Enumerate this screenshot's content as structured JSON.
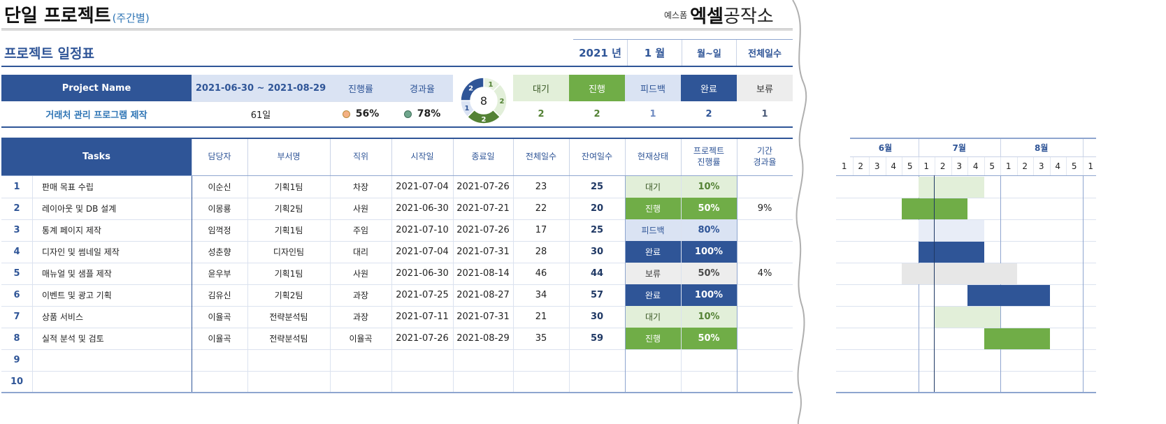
{
  "header": {
    "title": "단일 프로젝트",
    "subtitle": "(주간별)",
    "brand_prefix": "예스폼",
    "brand_bold": "엑셀",
    "brand_light": "공작소",
    "section_title": "프로젝트 일정표",
    "year_label": "2021 년",
    "month_label": "1 월",
    "weekday_label": "월~일",
    "total_days_label": "전체일수"
  },
  "summary": {
    "project_name_label": "Project Name",
    "project_name": "거래처 관리 프로그램 제작",
    "period": "2021-06-30 ~ 2021-08-29",
    "duration": "61일",
    "progress_label": "진행률",
    "progress_value": "56%",
    "elapsed_label": "경과율",
    "elapsed_value": "78%",
    "donut_total": "8",
    "donut_segments": [
      {
        "label": "1",
        "value": 1,
        "color": "#e8f2e0"
      },
      {
        "label": "2",
        "value": 2,
        "color": "#e2efd9"
      },
      {
        "label": "2",
        "value": 2,
        "color": "#548235"
      },
      {
        "label": "1",
        "value": 1,
        "color": "#dae3f3"
      },
      {
        "label": "2",
        "value": 2,
        "color": "#2f5597"
      }
    ],
    "statuses": [
      {
        "label": "대기",
        "count": "2",
        "bg": "#e2efd9",
        "fg": "#385723",
        "count_color": "#548235"
      },
      {
        "label": "진행",
        "count": "2",
        "bg": "#70ad47",
        "fg": "#ffffff",
        "count_color": "#548235"
      },
      {
        "label": "피드백",
        "count": "1",
        "bg": "#dae3f3",
        "fg": "#2f5597",
        "count_color": "#6f8bc2"
      },
      {
        "label": "완료",
        "count": "2",
        "bg": "#2f5597",
        "fg": "#ffffff",
        "count_color": "#2f5597"
      },
      {
        "label": "보류",
        "count": "1",
        "bg": "#ededed",
        "fg": "#333333",
        "count_color": "#4a5a78"
      }
    ]
  },
  "table": {
    "columns": [
      "Tasks",
      "담당자",
      "부서명",
      "직위",
      "시작일",
      "종료일",
      "전체일수",
      "잔여일수",
      "현재상태",
      "프로젝트 진행률",
      "기간 경과율"
    ],
    "column_lines": {
      "progress": [
        "프로젝트",
        "진행률"
      ],
      "elapsed": [
        "기간",
        "경과율"
      ]
    },
    "rows": [
      {
        "no": "1",
        "task": "판매 목표 수립",
        "owner": "이순신",
        "dept": "기획1팀",
        "pos": "차장",
        "start": "2021-07-04",
        "end": "2021-07-26",
        "total": "23",
        "remain": "25",
        "status": "대기",
        "progress": "10%",
        "elapsed": ""
      },
      {
        "no": "2",
        "task": "레이아웃 및 DB 설계",
        "owner": "이몽룡",
        "dept": "기획2팀",
        "pos": "사원",
        "start": "2021-06-30",
        "end": "2021-07-21",
        "total": "22",
        "remain": "20",
        "status": "진행",
        "progress": "50%",
        "elapsed": "9%"
      },
      {
        "no": "3",
        "task": "통계 페이지 제작",
        "owner": "임꺽정",
        "dept": "기획1팀",
        "pos": "주임",
        "start": "2021-07-10",
        "end": "2021-07-26",
        "total": "17",
        "remain": "25",
        "status": "피드백",
        "progress": "80%",
        "elapsed": ""
      },
      {
        "no": "4",
        "task": "디자인 및 썸네일 제작",
        "owner": "성춘향",
        "dept": "디자인팀",
        "pos": "대리",
        "start": "2021-07-04",
        "end": "2021-07-31",
        "total": "28",
        "remain": "30",
        "status": "완료",
        "progress": "100%",
        "elapsed": ""
      },
      {
        "no": "5",
        "task": "매뉴얼 및 샘플 제작",
        "owner": "윤우부",
        "dept": "기획1팀",
        "pos": "사원",
        "start": "2021-06-30",
        "end": "2021-08-14",
        "total": "46",
        "remain": "44",
        "status": "보류",
        "progress": "50%",
        "elapsed": "4%"
      },
      {
        "no": "6",
        "task": "이벤트 및 광고 기획",
        "owner": "김유신",
        "dept": "기획2팀",
        "pos": "과장",
        "start": "2021-07-25",
        "end": "2021-08-27",
        "total": "34",
        "remain": "57",
        "status": "완료",
        "progress": "100%",
        "elapsed": ""
      },
      {
        "no": "7",
        "task": "상품 서비스",
        "owner": "이율곡",
        "dept": "전략분석팀",
        "pos": "과장",
        "start": "2021-07-11",
        "end": "2021-07-31",
        "total": "21",
        "remain": "30",
        "status": "대기",
        "progress": "10%",
        "elapsed": ""
      },
      {
        "no": "8",
        "task": "실적 분석 및 검토",
        "owner": "이율곡",
        "dept": "전략분석팀",
        "pos": "이율곡",
        "start": "2021-07-26",
        "end": "2021-08-29",
        "total": "35",
        "remain": "59",
        "status": "진행",
        "progress": "50%",
        "elapsed": ""
      },
      {
        "no": "9",
        "task": "",
        "owner": "",
        "dept": "",
        "pos": "",
        "start": "",
        "end": "",
        "total": "",
        "remain": "",
        "status": "",
        "progress": "",
        "elapsed": ""
      },
      {
        "no": "10",
        "task": "",
        "owner": "",
        "dept": "",
        "pos": "",
        "start": "",
        "end": "",
        "total": "",
        "remain": "",
        "status": "",
        "progress": "",
        "elapsed": ""
      }
    ]
  },
  "gantt": {
    "months": [
      "6월",
      "7월",
      "8월"
    ],
    "weeks": [
      "1",
      "2",
      "3",
      "4",
      "5",
      "1",
      "2",
      "3",
      "4",
      "5",
      "1",
      "2",
      "3",
      "4",
      "5",
      "1"
    ],
    "bars": [
      {
        "row": 0,
        "start_week": 5,
        "end_week": 9,
        "color": "#e2efd9"
      },
      {
        "row": 1,
        "start_week": 4,
        "end_week": 8,
        "color": "#70ad47"
      },
      {
        "row": 2,
        "start_week": 5,
        "end_week": 9,
        "color": "#e8edf7"
      },
      {
        "row": 3,
        "start_week": 5,
        "end_week": 9,
        "color": "#2f5597"
      },
      {
        "row": 4,
        "start_week": 4,
        "end_week": 11,
        "color": "#e7e7e7"
      },
      {
        "row": 5,
        "start_week": 8,
        "end_week": 13,
        "color": "#2f5597"
      },
      {
        "row": 6,
        "start_week": 6,
        "end_week": 10,
        "color": "#e2efd9"
      },
      {
        "row": 7,
        "start_week": 9,
        "end_week": 13,
        "color": "#70ad47"
      }
    ]
  },
  "status_colors": {
    "대기": {
      "bg": "#e2efd9",
      "fg": "#385723",
      "pg": "#548235"
    },
    "진행": {
      "bg": "#70ad47",
      "fg": "#ffffff",
      "pg": "#ffffff"
    },
    "피드백": {
      "bg": "#dae3f3",
      "fg": "#2f5597",
      "pg": "#2f5597"
    },
    "완료": {
      "bg": "#2f5597",
      "fg": "#ffffff",
      "pg": "#ffffff"
    },
    "보류": {
      "bg": "#ededed",
      "fg": "#333333",
      "pg": "#4a4a4a"
    }
  }
}
